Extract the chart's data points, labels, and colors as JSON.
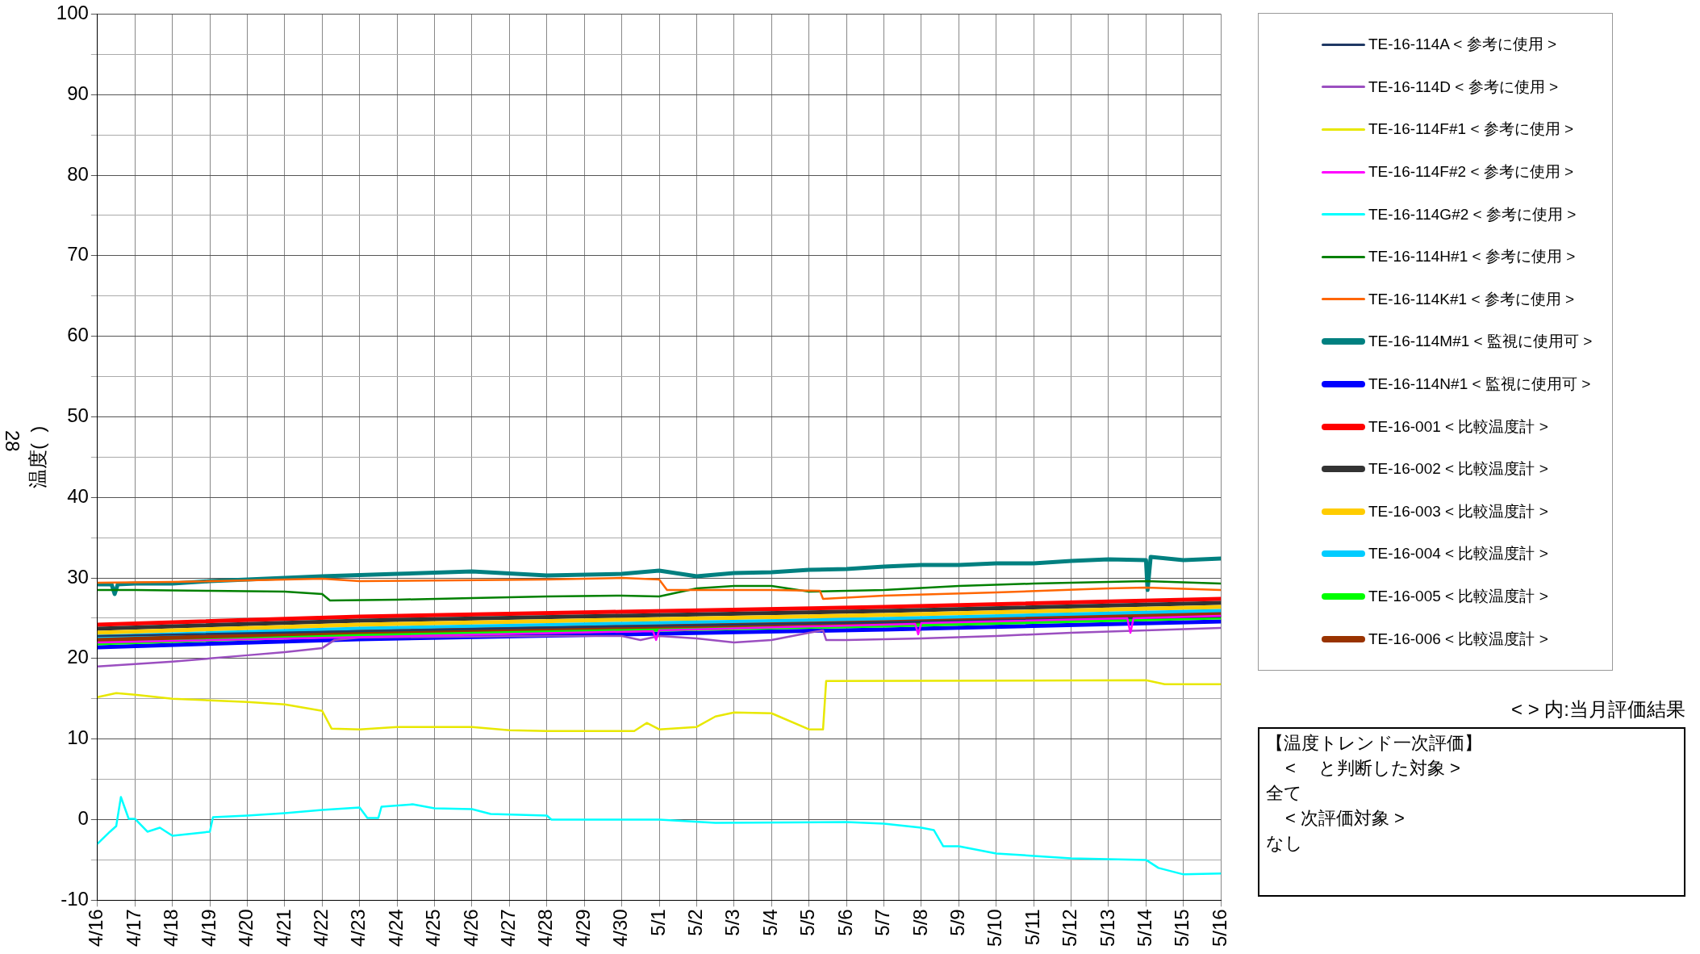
{
  "chart_data": {
    "type": "line",
    "ylabel": "温度(  )",
    "legend": "right",
    "grid": true,
    "marker": "none",
    "line_style": "solid",
    "xlim": [
      "--04-16",
      "--05-16"
    ],
    "xticks": [
      {
        "value": "--04-16",
        "label": "4/16"
      },
      {
        "value": "--04-17",
        "label": "4/17"
      },
      {
        "value": "--04-18",
        "label": "4/18"
      },
      {
        "value": "--04-19",
        "label": "4/19"
      },
      {
        "value": "--04-20",
        "label": "4/20"
      },
      {
        "value": "--04-21",
        "label": "4/21"
      },
      {
        "value": "--04-22",
        "label": "4/22"
      },
      {
        "value": "--04-23",
        "label": "4/23"
      },
      {
        "value": "--04-24",
        "label": "4/24"
      },
      {
        "value": "--04-25",
        "label": "4/25"
      },
      {
        "value": "--04-26",
        "label": "4/26"
      },
      {
        "value": "--04-27",
        "label": "4/27"
      },
      {
        "value": "--04-28",
        "label": "4/28"
      },
      {
        "value": "--04-29",
        "label": "4/29"
      },
      {
        "value": "--04-30",
        "label": "4/30"
      },
      {
        "value": "--05-01",
        "label": "5/1"
      },
      {
        "value": "--05-02",
        "label": "5/2"
      },
      {
        "value": "--05-03",
        "label": "5/3"
      },
      {
        "value": "--05-04",
        "label": "5/4"
      },
      {
        "value": "--05-05",
        "label": "5/5"
      },
      {
        "value": "--05-06",
        "label": "5/6"
      },
      {
        "value": "--05-07",
        "label": "5/7"
      },
      {
        "value": "--05-08",
        "label": "5/8"
      },
      {
        "value": "--05-09",
        "label": "5/9"
      },
      {
        "value": "--05-10",
        "label": "5/10"
      },
      {
        "value": "--05-11",
        "label": "5/11"
      },
      {
        "value": "--05-12",
        "label": "5/12"
      },
      {
        "value": "--05-13",
        "label": "5/13"
      },
      {
        "value": "--05-14",
        "label": "5/14"
      },
      {
        "value": "--05-15",
        "label": "5/15"
      },
      {
        "value": "--05-16",
        "label": "5/16"
      }
    ],
    "ylim": [
      -10,
      100
    ],
    "yticks": [
      -10,
      {
        "value": -5,
        "label": null
      },
      0,
      {
        "value": 5,
        "label": null
      },
      10,
      {
        "value": 15,
        "label": null
      },
      20,
      {
        "value": 25,
        "label": null
      },
      30,
      {
        "value": 35,
        "label": null
      },
      40,
      {
        "value": 45,
        "label": null
      },
      50,
      {
        "value": 55,
        "label": null
      },
      60,
      {
        "value": 65,
        "label": null
      },
      70,
      {
        "value": 75,
        "label": null
      },
      80,
      {
        "value": 85,
        "label": null
      },
      90,
      {
        "value": 95,
        "label": null
      },
      100
    ],
    "annotations": [
      "28",
      "< > 内:当月評価結果",
      "【温度トレンド一次評価】",
      "<　 と判断した対象 >",
      "全て",
      "< 次評価対象 >",
      "なし"
    ],
    "series": [
      {
        "name": "TE-16-114A < 参考に使用 >",
        "color": "#1f3864",
        "x": [
          "--04-16",
          "--04-23",
          "--04-30",
          "--05-07",
          "--05-16"
        ],
        "values": [
          22.8,
          23.4,
          24.0,
          24.5,
          25.2
        ]
      },
      {
        "name": "TE-16-114D < 参考に使用 >",
        "color": "#9b4fc0",
        "x": [
          "--04-16",
          "--04-17",
          "--04-18",
          "--04-19",
          "--04-20",
          "--04-21",
          "--04-22",
          "--04-22T08:00",
          "--04-23",
          "--04-28",
          "--04-30",
          "--04-30T12:00",
          "--05-01",
          "--05-02",
          "--05-03",
          "--05-04",
          "--05-05",
          "--05-05T09:00",
          "--05-05T11:00",
          "--05-06",
          "--05-08",
          "--05-10",
          "--05-12",
          "--05-14",
          "--05-16"
        ],
        "values": [
          19.0,
          19.3,
          19.6,
          20.0,
          20.4,
          20.8,
          21.3,
          22.3,
          22.6,
          22.8,
          22.8,
          22.3,
          22.8,
          22.5,
          22.0,
          22.3,
          23.2,
          23.5,
          22.3,
          22.3,
          22.5,
          22.8,
          23.2,
          23.5,
          23.8
        ]
      },
      {
        "name": "TE-16-114F#1 < 参考に使用 >",
        "color": "#e8e800",
        "x": [
          "--04-16",
          "--04-16T12:00",
          "--04-17",
          "--04-18",
          "--04-19",
          "--04-20",
          "--04-21",
          "--04-22",
          "--04-22T06:00",
          "--04-23",
          "--04-24",
          "--04-26",
          "--04-27",
          "--04-28",
          "--04-30",
          "--04-30T08:00",
          "--04-30T16:00",
          "--05-01",
          "--05-02",
          "--05-02T12:00",
          "--05-03",
          "--05-04",
          "--05-05",
          "--05-05T09:00",
          "--05-05T11:00",
          "--05-14",
          "--05-14T12:00",
          "--05-16"
        ],
        "values": [
          15.2,
          15.7,
          15.5,
          15.0,
          14.8,
          14.6,
          14.3,
          13.5,
          11.3,
          11.2,
          11.5,
          11.5,
          11.1,
          11.0,
          11.0,
          11.0,
          12.0,
          11.2,
          11.5,
          12.8,
          13.3,
          13.2,
          11.2,
          11.2,
          17.2,
          17.3,
          16.8,
          16.8
        ]
      },
      {
        "name": "TE-16-114F#2 < 参考に使用 >",
        "color": "#ff00ff",
        "x": [
          "--04-16",
          "--04-30T20:00",
          "--04-30T22:00",
          "--05-01",
          "--05-07T20:00",
          "--05-07T22:00",
          "--05-08",
          "--05-13T12:00",
          "--05-13T14:00",
          "--05-13T16:00",
          "--05-16"
        ],
        "values": [
          22.0,
          23.4,
          22.3,
          23.5,
          24.3,
          23.0,
          24.4,
          25.0,
          23.2,
          25.0,
          25.3
        ]
      },
      {
        "name": "TE-16-114G#2 < 参考に使用 >",
        "color": "#00ffff",
        "x": [
          "--04-16",
          "--04-16T08:00",
          "--04-16T12:00",
          "--04-16T15:00",
          "--04-16T20:00",
          "--04-17",
          "--04-17T08:00",
          "--04-17T16:00",
          "--04-18",
          "--04-19",
          "--04-19T02:00",
          "--04-20",
          "--04-21",
          "--04-22",
          "--04-23",
          "--04-23T05:00",
          "--04-23T12:00",
          "--04-23T14:00",
          "--04-24T10:00",
          "--04-25",
          "--04-26",
          "--04-26T12:00",
          "--04-28",
          "--04-28T03:00",
          "--05-01",
          "--05-02T12:00",
          "--05-06",
          "--05-07",
          "--05-08",
          "--05-08T08:00",
          "--05-08T14:00",
          "--05-09",
          "--05-10",
          "--05-11",
          "--05-12",
          "--05-13",
          "--05-14",
          "--05-14T08:00",
          "--05-15",
          "--05-16"
        ],
        "values": [
          -3.0,
          -1.5,
          -0.8,
          2.8,
          0.1,
          0.1,
          -1.5,
          -1.0,
          -2.0,
          -1.5,
          0.3,
          0.5,
          0.8,
          1.2,
          1.5,
          0.2,
          0.2,
          1.6,
          1.9,
          1.4,
          1.3,
          0.7,
          0.5,
          0.0,
          0.0,
          -0.4,
          -0.3,
          -0.5,
          -1.0,
          -1.3,
          -3.3,
          -3.3,
          -4.2,
          -4.5,
          -4.8,
          -4.9,
          -5.0,
          -6.0,
          -6.8,
          -6.7
        ]
      },
      {
        "name": "TE-16-114H#1 < 参考に使用 >",
        "color": "#008000",
        "x": [
          "--04-16",
          "--04-17",
          "--04-19",
          "--04-21",
          "--04-22",
          "--04-22T05:00",
          "--04-24",
          "--04-26",
          "--04-28",
          "--04-30",
          "--05-01",
          "--05-02",
          "--05-03",
          "--05-04",
          "--05-05",
          "--05-07",
          "--05-09",
          "--05-11",
          "--05-13",
          "--05-14",
          "--05-16"
        ],
        "values": [
          28.5,
          28.5,
          28.4,
          28.3,
          28.0,
          27.2,
          27.3,
          27.5,
          27.7,
          27.8,
          27.7,
          28.7,
          29.0,
          29.0,
          28.3,
          28.5,
          29.0,
          29.3,
          29.5,
          29.6,
          29.3
        ]
      },
      {
        "name": "TE-16-114K#1 < 参考に使用 >",
        "color": "#ff6600",
        "x": [
          "--04-16",
          "--04-18",
          "--04-22",
          "--04-23",
          "--04-28",
          "--04-30",
          "--05-01",
          "--05-01T05:00",
          "--05-03",
          "--05-04",
          "--05-05T07:00",
          "--05-05T09:00",
          "--05-07",
          "--05-10",
          "--05-13",
          "--05-14",
          "--05-16"
        ],
        "values": [
          29.4,
          29.5,
          29.9,
          29.6,
          29.8,
          30.0,
          29.8,
          28.5,
          28.5,
          28.5,
          28.4,
          27.4,
          27.8,
          28.2,
          28.7,
          28.8,
          28.5
        ]
      },
      {
        "name": "TE-16-114M#1 < 監視に使用可 >",
        "color": "#008080",
        "x": [
          "--04-16",
          "--04-16T09:00",
          "--04-16T11:00",
          "--04-16T13:00",
          "--04-17",
          "--04-18",
          "--04-19",
          "--04-21",
          "--04-22",
          "--04-24",
          "--04-26",
          "--04-28",
          "--04-30",
          "--05-01",
          "--05-02",
          "--05-03",
          "--05-04",
          "--05-05",
          "--05-06",
          "--05-07",
          "--05-08",
          "--05-09",
          "--05-10",
          "--05-11",
          "--05-12",
          "--05-13",
          "--05-14",
          "--05-14T01:00",
          "--05-14T03:00",
          "--05-15",
          "--05-16"
        ],
        "values": [
          29.2,
          29.2,
          28.0,
          29.2,
          29.3,
          29.3,
          29.6,
          30.0,
          30.2,
          30.5,
          30.8,
          30.3,
          30.5,
          30.9,
          30.2,
          30.6,
          30.7,
          31.0,
          31.1,
          31.4,
          31.6,
          31.6,
          31.8,
          31.8,
          32.1,
          32.3,
          32.2,
          28.5,
          32.6,
          32.2,
          32.4
        ]
      },
      {
        "name": "TE-16-114N#1 < 監視に使用可 >",
        "color": "#0000ff",
        "x": [
          "--04-16",
          "--04-23",
          "--04-30",
          "--05-07",
          "--05-16"
        ],
        "values": [
          21.4,
          22.4,
          23.0,
          23.6,
          24.6
        ]
      },
      {
        "name": "TE-16-001 < 比較温度計 >",
        "color": "#ff0000",
        "x": [
          "--04-16",
          "--04-23",
          "--04-30",
          "--05-07",
          "--05-16"
        ],
        "values": [
          24.2,
          25.2,
          25.8,
          26.4,
          27.4
        ]
      },
      {
        "name": "TE-16-002 < 比較温度計 >",
        "color": "#333333",
        "x": [
          "--04-16",
          "--04-23",
          "--04-30",
          "--05-07",
          "--05-16"
        ],
        "values": [
          23.7,
          24.7,
          25.3,
          25.9,
          26.9
        ]
      },
      {
        "name": "TE-16-003 < 比較温度計 >",
        "color": "#ffcc00",
        "x": [
          "--04-16",
          "--04-23",
          "--04-30",
          "--05-07",
          "--05-16"
        ],
        "values": [
          23.2,
          24.2,
          24.8,
          25.4,
          26.4
        ]
      },
      {
        "name": "TE-16-004 < 比較温度計 >",
        "color": "#00ccff",
        "x": [
          "--04-16",
          "--04-23",
          "--04-30",
          "--05-07",
          "--05-16"
        ],
        "values": [
          22.7,
          23.7,
          24.3,
          24.9,
          25.9
        ]
      },
      {
        "name": "TE-16-005 < 比較温度計 >",
        "color": "#00ff00",
        "x": [
          "--04-16",
          "--04-23",
          "--04-30",
          "--05-07",
          "--05-16"
        ],
        "values": [
          21.9,
          22.9,
          23.5,
          24.1,
          25.1
        ]
      },
      {
        "name": "TE-16-006 < 比較温度計 >",
        "color": "#993300",
        "x": [
          "--04-16",
          "--04-23",
          "--04-30",
          "--05-07",
          "--05-16"
        ],
        "values": [
          22.3,
          23.3,
          23.9,
          24.5,
          25.5
        ]
      }
    ]
  }
}
